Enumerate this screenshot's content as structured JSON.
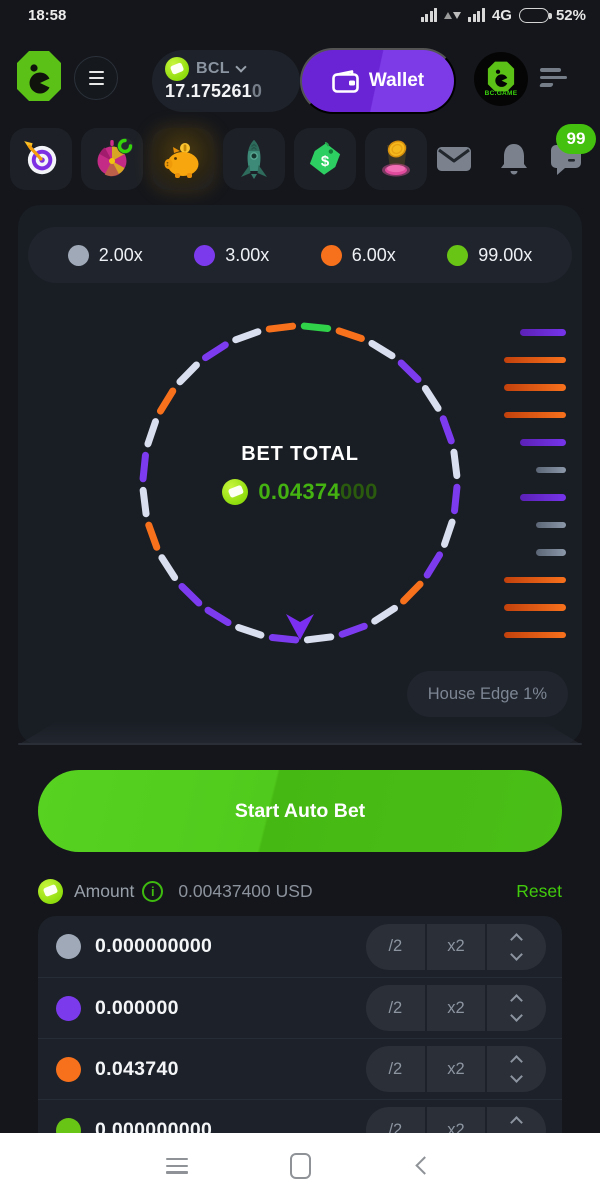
{
  "status_bar": {
    "time": "18:58",
    "network_label": "4G",
    "battery_label": "52%",
    "battery_level_pct": 52
  },
  "header": {
    "currency_code": "BCL",
    "balance_main": "17.175261",
    "balance_dim": "0",
    "wallet_label": "Wallet",
    "brand_label": "BC.GAME"
  },
  "notifications": {
    "chat_badge": "99"
  },
  "game_nav": {
    "items": [
      {
        "name": "darts"
      },
      {
        "name": "fortune-wheel"
      },
      {
        "name": "piggy-bank",
        "active": true
      },
      {
        "name": "rocket"
      },
      {
        "name": "price-tag"
      },
      {
        "name": "coin-drop"
      }
    ]
  },
  "legend": {
    "items": [
      {
        "label": "2.00x",
        "color": "#9fa9b8"
      },
      {
        "label": "3.00x",
        "color": "#7c3aed"
      },
      {
        "label": "6.00x",
        "color": "#f7711c"
      },
      {
        "label": "99.00x",
        "color": "#69c515"
      }
    ]
  },
  "wheel": {
    "center_title": "BET TOTAL",
    "bet_total_main": "0.04374",
    "bet_total_dim": "000",
    "start_angle_deg": -97,
    "radius": 157,
    "colors": {
      "white": "#d9dfee",
      "purple": "#7d3bf0",
      "orange": "#f7711c",
      "green": "#2fd249"
    },
    "segments": [
      "orange",
      "green",
      "orange",
      "white",
      "purple",
      "white",
      "purple",
      "white",
      "purple",
      "white",
      "purple",
      "orange",
      "white",
      "purple",
      "white",
      "purple",
      "white",
      "purple",
      "purple",
      "white",
      "orange",
      "white",
      "purple",
      "white",
      "orange",
      "white",
      "purple",
      "white"
    ]
  },
  "history": {
    "bars": [
      "purple",
      "orange",
      "orange",
      "orange",
      "purple",
      "gray",
      "purple",
      "gray",
      "gray",
      "orange",
      "orange",
      "orange"
    ],
    "colors": {
      "purple": "#7634ea",
      "orange": "#f7711c",
      "gray": "#8b98a9"
    },
    "colors_dark": {
      "purple": "#5b21b6",
      "orange": "#c2410c",
      "gray": "#5b6676"
    },
    "widths": {
      "purple": 46,
      "orange": 62,
      "gray": 30
    }
  },
  "house_edge_label": "House Edge 1%",
  "primary_button_label": "Start Auto Bet",
  "amount_row": {
    "label": "Amount",
    "info_glyph": "i",
    "value": "0.00437400 USD",
    "reset_label": "Reset"
  },
  "bet_rows": {
    "half_label": "/2",
    "double_label": "x2",
    "rows": [
      {
        "color": "#9fa9b8",
        "value": "0.000000000"
      },
      {
        "color": "#7c3aed",
        "value": "0.000000"
      },
      {
        "color": "#f7711c",
        "value": "0.043740"
      },
      {
        "color": "#69c515",
        "value": "0.000000000"
      }
    ]
  }
}
